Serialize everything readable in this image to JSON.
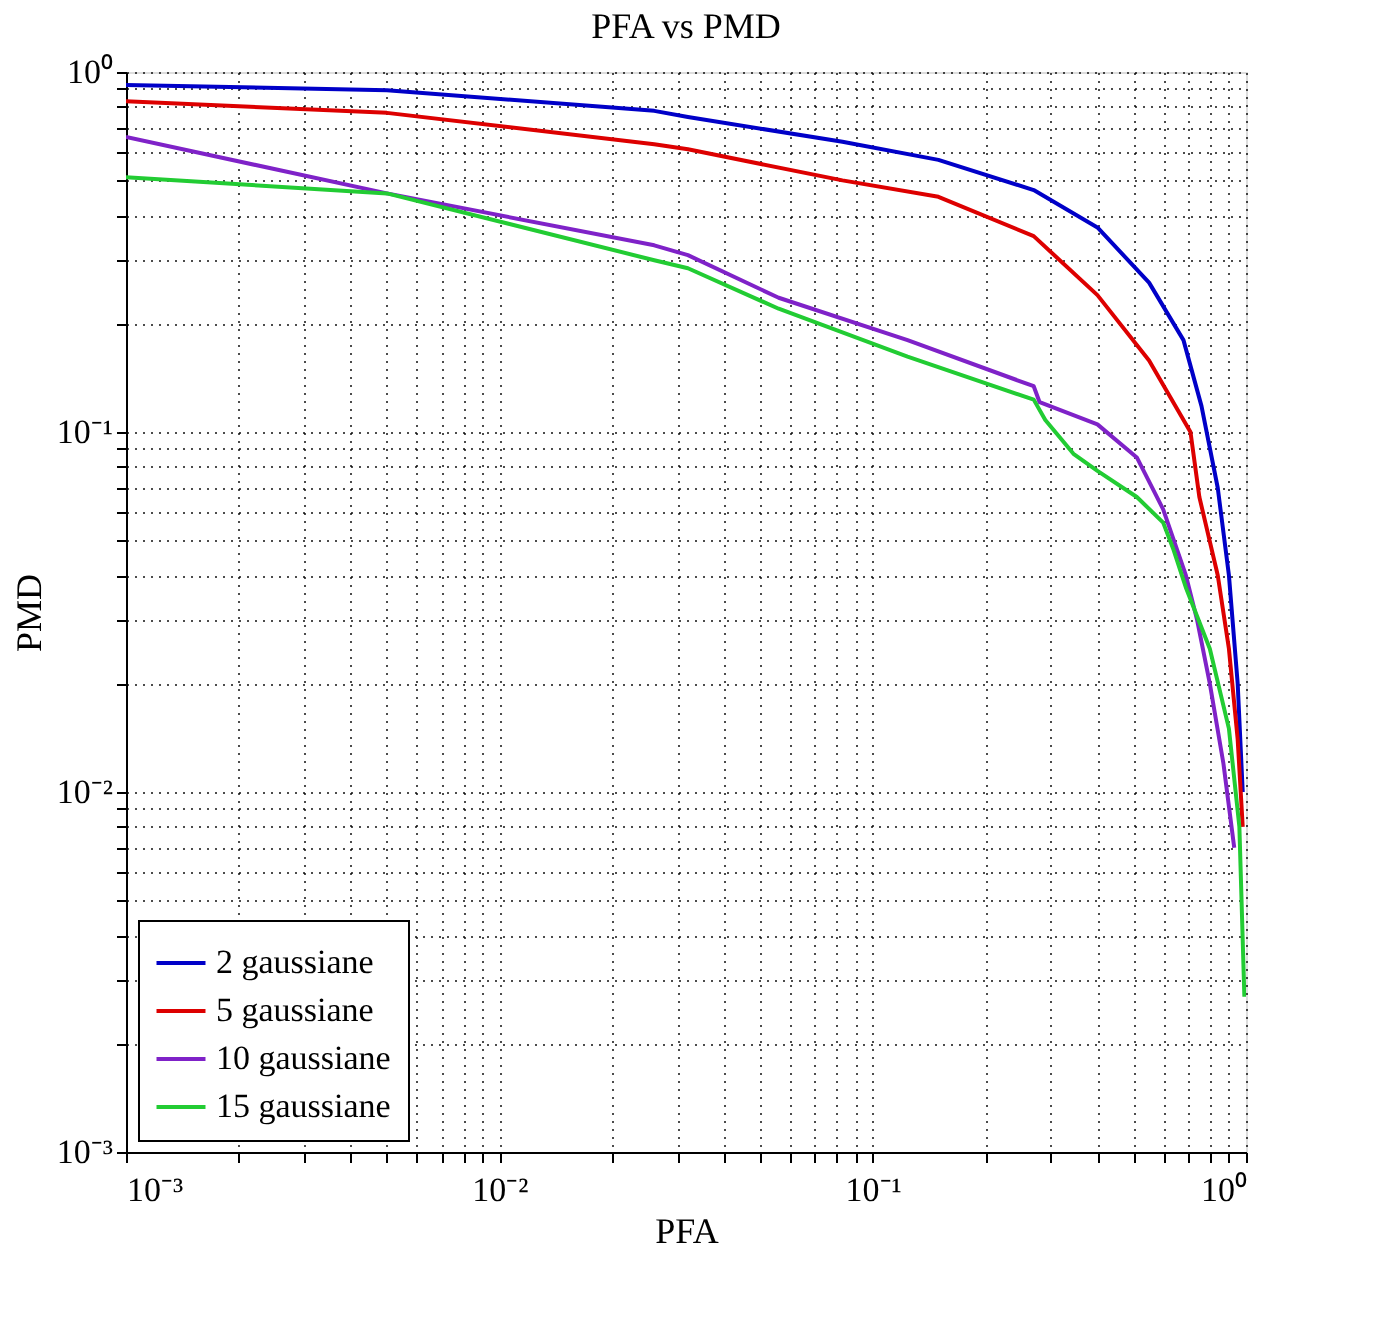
{
  "chart_data": {
    "type": "line",
    "title": "PFA vs PMD",
    "xlabel": "PFA",
    "ylabel": "PMD",
    "log": "xy",
    "grid": true,
    "legend": "bottom left",
    "line_style": "solid",
    "marker": "none",
    "xlim": [
      0.001,
      1
    ],
    "ylim": [
      0.001,
      1
    ],
    "xticks": [
      {
        "value": 0.001,
        "label": "10⁻³"
      },
      {
        "value": 0.002,
        "label": null
      },
      {
        "value": 0.003,
        "label": null
      },
      {
        "value": 0.004,
        "label": null
      },
      {
        "value": 0.005,
        "label": null
      },
      {
        "value": 0.006,
        "label": null
      },
      {
        "value": 0.007,
        "label": null
      },
      {
        "value": 0.008,
        "label": null
      },
      {
        "value": 0.009,
        "label": null
      },
      {
        "value": 0.01,
        "label": "10⁻²"
      },
      {
        "value": 0.02,
        "label": null
      },
      {
        "value": 0.03,
        "label": null
      },
      {
        "value": 0.04,
        "label": null
      },
      {
        "value": 0.05,
        "label": null
      },
      {
        "value": 0.06,
        "label": null
      },
      {
        "value": 0.07,
        "label": null
      },
      {
        "value": 0.08,
        "label": null
      },
      {
        "value": 0.09,
        "label": null
      },
      {
        "value": 0.1,
        "label": "10⁻¹"
      },
      {
        "value": 0.2,
        "label": null
      },
      {
        "value": 0.3,
        "label": null
      },
      {
        "value": 0.4,
        "label": null
      },
      {
        "value": 0.5,
        "label": null
      },
      {
        "value": 0.6,
        "label": null
      },
      {
        "value": 0.7,
        "label": null
      },
      {
        "value": 0.8,
        "label": null
      },
      {
        "value": 0.9,
        "label": null
      },
      {
        "value": 1,
        "label": "10⁰"
      }
    ],
    "yticks": [
      {
        "value": 0.001,
        "label": "10⁻³"
      },
      {
        "value": 0.002,
        "label": null
      },
      {
        "value": 0.003,
        "label": null
      },
      {
        "value": 0.004,
        "label": null
      },
      {
        "value": 0.005,
        "label": null
      },
      {
        "value": 0.006,
        "label": null
      },
      {
        "value": 0.007,
        "label": null
      },
      {
        "value": 0.008,
        "label": null
      },
      {
        "value": 0.009,
        "label": null
      },
      {
        "value": 0.01,
        "label": "10⁻²"
      },
      {
        "value": 0.02,
        "label": null
      },
      {
        "value": 0.03,
        "label": null
      },
      {
        "value": 0.04,
        "label": null
      },
      {
        "value": 0.05,
        "label": null
      },
      {
        "value": 0.06,
        "label": null
      },
      {
        "value": 0.07,
        "label": null
      },
      {
        "value": 0.08,
        "label": null
      },
      {
        "value": 0.09,
        "label": null
      },
      {
        "value": 0.1,
        "label": "10⁻¹"
      },
      {
        "value": 0.2,
        "label": null
      },
      {
        "value": 0.3,
        "label": null
      },
      {
        "value": 0.4,
        "label": null
      },
      {
        "value": 0.5,
        "label": null
      },
      {
        "value": 0.6,
        "label": null
      },
      {
        "value": 0.7,
        "label": null
      },
      {
        "value": 0.8,
        "label": null
      },
      {
        "value": 0.9,
        "label": null
      },
      {
        "value": 1,
        "label": "10⁰"
      }
    ],
    "series": [
      {
        "name": "2 gaussiane",
        "color": "#0000c8",
        "x": [
          0.001,
          0.005,
          0.026,
          0.032,
          0.083,
          0.15,
          0.27,
          0.4,
          0.55,
          0.68,
          0.76,
          0.84,
          0.9,
          0.95,
          0.98
        ],
        "values": [
          0.92,
          0.89,
          0.78,
          0.75,
          0.64,
          0.57,
          0.47,
          0.37,
          0.26,
          0.18,
          0.118,
          0.07,
          0.04,
          0.02,
          0.01
        ]
      },
      {
        "name": "5 gaussiane",
        "color": "#dd0000",
        "x": [
          0.001,
          0.005,
          0.026,
          0.032,
          0.083,
          0.15,
          0.27,
          0.4,
          0.55,
          0.71,
          0.75,
          0.84,
          0.9,
          0.95,
          0.98
        ],
        "values": [
          0.83,
          0.77,
          0.63,
          0.61,
          0.5,
          0.45,
          0.35,
          0.24,
          0.158,
          0.1,
          0.066,
          0.04,
          0.025,
          0.014,
          0.008
        ]
      },
      {
        "name": "10 gaussiane",
        "color": "#7f22c8",
        "x": [
          0.001,
          0.005,
          0.026,
          0.032,
          0.056,
          0.124,
          0.27,
          0.28,
          0.4,
          0.51,
          0.6,
          0.69,
          0.74,
          0.8,
          0.87,
          0.93
        ],
        "values": [
          0.66,
          0.46,
          0.33,
          0.31,
          0.236,
          0.18,
          0.134,
          0.121,
          0.105,
          0.085,
          0.061,
          0.04,
          0.03,
          0.02,
          0.012,
          0.007
        ]
      },
      {
        "name": "15 gaussiane",
        "color": "#22cc33",
        "x": [
          0.001,
          0.005,
          0.026,
          0.032,
          0.056,
          0.124,
          0.27,
          0.29,
          0.345,
          0.4,
          0.51,
          0.6,
          0.64,
          0.69,
          0.8,
          0.9,
          0.96,
          0.99
        ],
        "values": [
          0.51,
          0.46,
          0.3,
          0.285,
          0.22,
          0.162,
          0.123,
          0.108,
          0.087,
          0.078,
          0.066,
          0.056,
          0.047,
          0.037,
          0.025,
          0.015,
          0.008,
          0.0027
        ]
      }
    ]
  }
}
